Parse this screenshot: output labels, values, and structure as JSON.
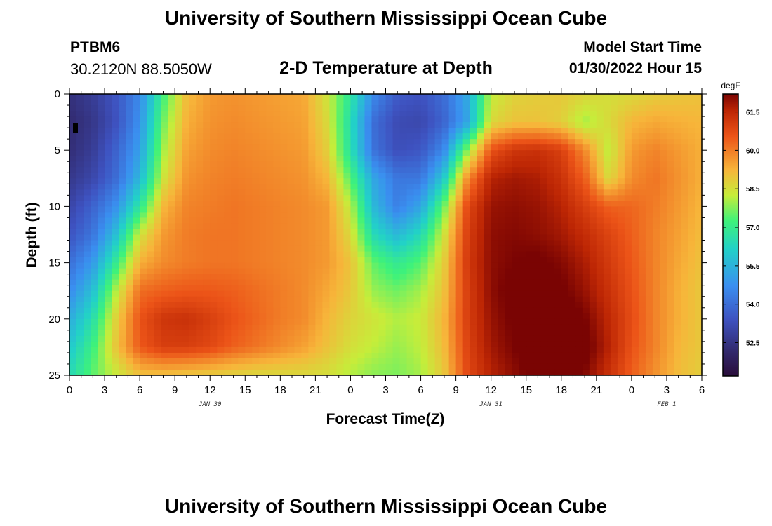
{
  "page": {
    "title": "University of Southern Mississippi Ocean Cube",
    "title_repeat": "University of Southern Mississippi Ocean Cube",
    "station_id": "PTBM6",
    "coordinates": "30.2120N  88.5050W",
    "subtitle": "2-D Temperature at Depth",
    "model_start_label": "Model Start Time",
    "model_start_value": "01/30/2022 Hour 15"
  },
  "chart_data": {
    "type": "heatmap",
    "title": "2-D Temperature at Depth",
    "xlabel": "Forecast Time(Z)",
    "ylabel": "Depth (ft)",
    "x_range_hours": [
      0,
      54
    ],
    "y_range_ft": [
      0,
      25
    ],
    "y_inverted": true,
    "x_ticks": [
      {
        "h": 0,
        "label": "0"
      },
      {
        "h": 3,
        "label": "3"
      },
      {
        "h": 6,
        "label": "6"
      },
      {
        "h": 9,
        "label": "9"
      },
      {
        "h": 12,
        "label": "12"
      },
      {
        "h": 15,
        "label": "15"
      },
      {
        "h": 18,
        "label": "18"
      },
      {
        "h": 21,
        "label": "21"
      },
      {
        "h": 24,
        "label": "0"
      },
      {
        "h": 27,
        "label": "3"
      },
      {
        "h": 30,
        "label": "6"
      },
      {
        "h": 33,
        "label": "9"
      },
      {
        "h": 36,
        "label": "12"
      },
      {
        "h": 39,
        "label": "15"
      },
      {
        "h": 42,
        "label": "18"
      },
      {
        "h": 45,
        "label": "21"
      },
      {
        "h": 48,
        "label": "0"
      },
      {
        "h": 51,
        "label": "3"
      },
      {
        "h": 54,
        "label": "6"
      }
    ],
    "date_labels": [
      {
        "h": 12,
        "label": "JAN 30"
      },
      {
        "h": 36,
        "label": "JAN 31"
      },
      {
        "h": 51,
        "label": "FEB 1"
      }
    ],
    "y_ticks": [
      0,
      5,
      10,
      15,
      20,
      25
    ],
    "colorbar": {
      "unit": "degF",
      "min": 51.2,
      "max": 62.2,
      "ticks": [
        61.5,
        60.0,
        58.5,
        57.0,
        55.5,
        54.0,
        52.5
      ],
      "tick_labels": [
        "61.5",
        "60.0",
        "58.5",
        "57.0",
        "55.5",
        "54.0",
        "52.5"
      ]
    },
    "x_samples_hours": [
      0,
      2,
      4,
      6,
      8,
      10,
      12,
      14,
      16,
      18,
      20,
      22,
      24,
      26,
      28,
      30,
      32,
      34,
      36,
      38,
      40,
      42,
      44,
      46,
      48,
      50,
      52,
      54
    ],
    "depth_samples_ft": [
      0,
      2.5,
      5,
      7.5,
      10,
      12.5,
      15,
      17.5,
      20,
      22.5,
      25
    ],
    "temperature_degF": [
      [
        52.4,
        52.8,
        53.5,
        54.6,
        57.2,
        59.1,
        59.6,
        59.7,
        59.6,
        59.5,
        59.4,
        58.4,
        56.8,
        54.6,
        53.6,
        53.4,
        54.0,
        55.3,
        58.2,
        58.7,
        58.8,
        58.9,
        58.7,
        58.5,
        58.6,
        58.8,
        58.9,
        59.0
      ],
      [
        52.2,
        52.6,
        53.4,
        54.8,
        57.6,
        59.3,
        59.7,
        59.8,
        59.7,
        59.6,
        59.5,
        58.6,
        56.5,
        54.0,
        53.2,
        53.1,
        53.8,
        55.2,
        58.6,
        59.0,
        59.0,
        58.8,
        58.0,
        58.6,
        59.2,
        59.4,
        59.3,
        59.2
      ],
      [
        52.3,
        52.8,
        53.8,
        55.1,
        58.0,
        59.5,
        59.8,
        59.9,
        59.8,
        59.7,
        59.6,
        58.8,
        56.6,
        54.1,
        53.3,
        53.5,
        54.6,
        57.8,
        60.6,
        61.2,
        61.3,
        61.0,
        59.8,
        58.2,
        59.6,
        59.9,
        59.6,
        59.3
      ],
      [
        52.6,
        53.1,
        54.0,
        55.6,
        58.4,
        59.7,
        59.9,
        60.0,
        59.9,
        59.8,
        59.7,
        59.2,
        57.4,
        55.2,
        54.2,
        54.2,
        56.0,
        59.8,
        61.6,
        61.8,
        61.7,
        61.3,
        60.4,
        58.6,
        59.8,
        60.1,
        59.7,
        59.3
      ],
      [
        53.0,
        53.8,
        54.8,
        56.8,
        59.2,
        59.9,
        60.0,
        60.1,
        60.0,
        59.9,
        59.8,
        59.6,
        58.2,
        55.6,
        54.4,
        55.2,
        57.6,
        60.8,
        61.9,
        62.0,
        61.9,
        61.6,
        61.0,
        60.4,
        60.3,
        60.0,
        59.6,
        59.2
      ],
      [
        53.4,
        54.2,
        55.8,
        58.4,
        59.6,
        60.0,
        60.1,
        60.1,
        60.0,
        59.9,
        59.8,
        59.6,
        58.6,
        56.4,
        55.6,
        56.4,
        58.4,
        61.0,
        62.0,
        62.1,
        62.0,
        61.8,
        61.4,
        60.9,
        60.4,
        59.9,
        59.5,
        59.1
      ],
      [
        54.0,
        55.0,
        57.0,
        59.3,
        59.8,
        60.0,
        60.1,
        60.1,
        60.0,
        59.9,
        59.8,
        59.6,
        59.0,
        57.5,
        56.9,
        57.4,
        58.8,
        61.1,
        62.0,
        62.2,
        62.3,
        62.1,
        61.7,
        61.1,
        60.5,
        59.9,
        59.4,
        59.0
      ],
      [
        54.6,
        55.8,
        58.2,
        60.2,
        60.4,
        60.5,
        60.5,
        60.4,
        60.2,
        60.0,
        59.8,
        59.4,
        58.9,
        57.9,
        57.6,
        58.0,
        59.0,
        61.0,
        62.0,
        62.4,
        62.5,
        62.3,
        61.9,
        61.3,
        60.6,
        59.9,
        59.3,
        58.9
      ],
      [
        55.3,
        56.6,
        58.8,
        60.6,
        61.2,
        61.3,
        61.0,
        60.6,
        60.3,
        60.0,
        59.8,
        59.2,
        58.7,
        58.4,
        58.1,
        58.3,
        59.2,
        61.0,
        61.9,
        62.3,
        62.6,
        62.6,
        62.2,
        61.5,
        60.7,
        59.9,
        59.3,
        58.9
      ],
      [
        55.9,
        57.2,
        59.0,
        60.5,
        61.0,
        61.0,
        60.8,
        60.4,
        60.1,
        59.8,
        59.5,
        59.0,
        58.5,
        58.2,
        57.9,
        58.2,
        59.1,
        60.9,
        61.8,
        62.2,
        62.7,
        63.0,
        62.4,
        61.6,
        60.6,
        59.9,
        59.2,
        58.9
      ],
      [
        56.4,
        57.5,
        58.3,
        59.0,
        59.0,
        58.9,
        58.8,
        58.7,
        58.6,
        58.6,
        58.6,
        58.5,
        58.1,
        57.8,
        57.7,
        58.0,
        58.9,
        60.8,
        61.6,
        62.0,
        62.4,
        62.6,
        62.1,
        61.3,
        60.4,
        59.7,
        59.1,
        58.8
      ]
    ]
  }
}
